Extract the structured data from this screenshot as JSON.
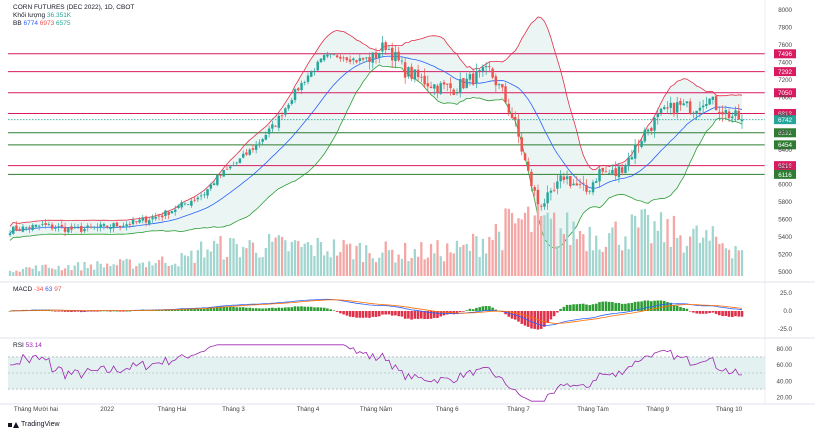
{
  "header": {
    "instrument": "CORN FUTURES (DEC 2022), 1D, CBOT",
    "volume_label": "Khối lượng",
    "volume_value": "36.351K",
    "bb_label": "BB",
    "bb_values": [
      "6774",
      "6973",
      "6575"
    ]
  },
  "macd_legend": {
    "label": "MACD",
    "values": [
      "-34",
      "63",
      "97"
    ]
  },
  "rsi_legend": {
    "label": "RSI",
    "value": "53.14"
  },
  "brand": "TradingView",
  "colors": {
    "up": "#26a69a",
    "down": "#ef5350",
    "vol_up": "#a1d5cf",
    "vol_down": "#f4a6a4",
    "bb_upper": "#e0314a",
    "bb_lower": "#2e9d34",
    "bb_mid": "#2962ff",
    "bb_fill": "#e6f3f2",
    "res_line": "#d81b60",
    "sup_line": "#2e7d32",
    "macd_line": "#2962ff",
    "signal_line": "#ff6d00",
    "rsi_line": "#9c27b0",
    "rsi_band": "#e3f2f1"
  },
  "chart_data": [
    {
      "type": "candlestick",
      "name": "price",
      "y_ticks": [
        "8000",
        "7800",
        "7600",
        "7400",
        "7200",
        "7000",
        "6800",
        "6600",
        "6400",
        "6200",
        "6000",
        "5800",
        "5600",
        "5400",
        "5200",
        "5000"
      ],
      "y_tick_values": [
        800,
        780,
        760,
        740,
        720,
        700,
        680,
        660,
        640,
        620,
        600,
        580,
        560,
        540,
        520,
        500
      ],
      "ylim": [
        493,
        802
      ],
      "x_labels": [
        "Tháng Mười hai",
        "2022",
        "Tháng Hai",
        "Tháng 3",
        "Tháng 4",
        "Tháng Năm",
        "Tháng 6",
        "Tháng 7",
        "Tháng Tám",
        "Tháng 9",
        "Tháng 10"
      ],
      "x_label_index": [
        8,
        30,
        50,
        69,
        92,
        113,
        135,
        157,
        180,
        200,
        222
      ],
      "horizontal_levels": [
        {
          "label": "7496",
          "value": 749.6,
          "kind": "resistance"
        },
        {
          "label": "7292",
          "value": 729.2,
          "kind": "resistance"
        },
        {
          "label": "7050",
          "value": 705.0,
          "kind": "resistance"
        },
        {
          "label": "6813",
          "value": 681.3,
          "kind": "resistance"
        },
        {
          "label": "6592",
          "value": 659.2,
          "kind": "support"
        },
        {
          "label": "6454",
          "value": 645.4,
          "kind": "support"
        },
        {
          "label": "6216",
          "value": 621.6,
          "kind": "resistance"
        },
        {
          "label": "6116",
          "value": 611.6,
          "kind": "support"
        }
      ],
      "last_price": {
        "label": "6742",
        "value": 674.2
      },
      "anchors": [
        [
          0,
          548
        ],
        [
          10,
          553
        ],
        [
          20,
          548
        ],
        [
          28,
          551
        ],
        [
          38,
          556
        ],
        [
          47,
          565
        ],
        [
          55,
          580
        ],
        [
          60,
          590
        ],
        [
          64,
          608
        ],
        [
          70,
          625
        ],
        [
          76,
          645
        ],
        [
          82,
          670
        ],
        [
          87,
          700
        ],
        [
          92,
          725
        ],
        [
          97,
          745
        ],
        [
          102,
          748
        ],
        [
          107,
          742
        ],
        [
          112,
          745
        ],
        [
          116,
          760
        ],
        [
          119,
          745
        ],
        [
          122,
          730
        ],
        [
          127,
          720
        ],
        [
          132,
          712
        ],
        [
          137,
          710
        ],
        [
          142,
          720
        ],
        [
          148,
          730
        ],
        [
          152,
          705
        ],
        [
          156,
          668
        ],
        [
          160,
          612
        ],
        [
          163,
          578
        ],
        [
          167,
          585
        ],
        [
          171,
          610
        ],
        [
          175,
          598
        ],
        [
          178,
          592
        ],
        [
          182,
          615
        ],
        [
          187,
          612
        ],
        [
          191,
          630
        ],
        [
          196,
          660
        ],
        [
          201,
          680
        ],
        [
          206,
          690
        ],
        [
          211,
          688
        ],
        [
          215,
          700
        ],
        [
          218,
          690
        ],
        [
          222,
          680
        ],
        [
          226,
          674
        ]
      ],
      "bollinger_width": 45,
      "bollinger_period": 20
    },
    {
      "type": "bar",
      "name": "volume",
      "y_ticks": [],
      "profile": [
        [
          0,
          12
        ],
        [
          40,
          22
        ],
        [
          55,
          30
        ],
        [
          60,
          48
        ],
        [
          80,
          52
        ],
        [
          100,
          48
        ],
        [
          120,
          40
        ],
        [
          140,
          45
        ],
        [
          150,
          75
        ],
        [
          158,
          95
        ],
        [
          170,
          80
        ],
        [
          185,
          70
        ],
        [
          195,
          82
        ],
        [
          210,
          68
        ],
        [
          226,
          50
        ]
      ]
    },
    {
      "type": "line",
      "name": "macd",
      "y_ticks": [
        "25.0",
        "0.0",
        "-25.0"
      ],
      "y_tick_values": [
        25,
        0,
        -25
      ],
      "ylim": [
        -32,
        32
      ]
    },
    {
      "type": "line",
      "name": "rsi",
      "y_ticks": [
        "80.00",
        "60.00",
        "40.00",
        "20.00"
      ],
      "y_tick_values": [
        80,
        60,
        40,
        20
      ],
      "ylim": [
        14,
        86
      ],
      "band": [
        30,
        70
      ],
      "mid": 50
    }
  ]
}
